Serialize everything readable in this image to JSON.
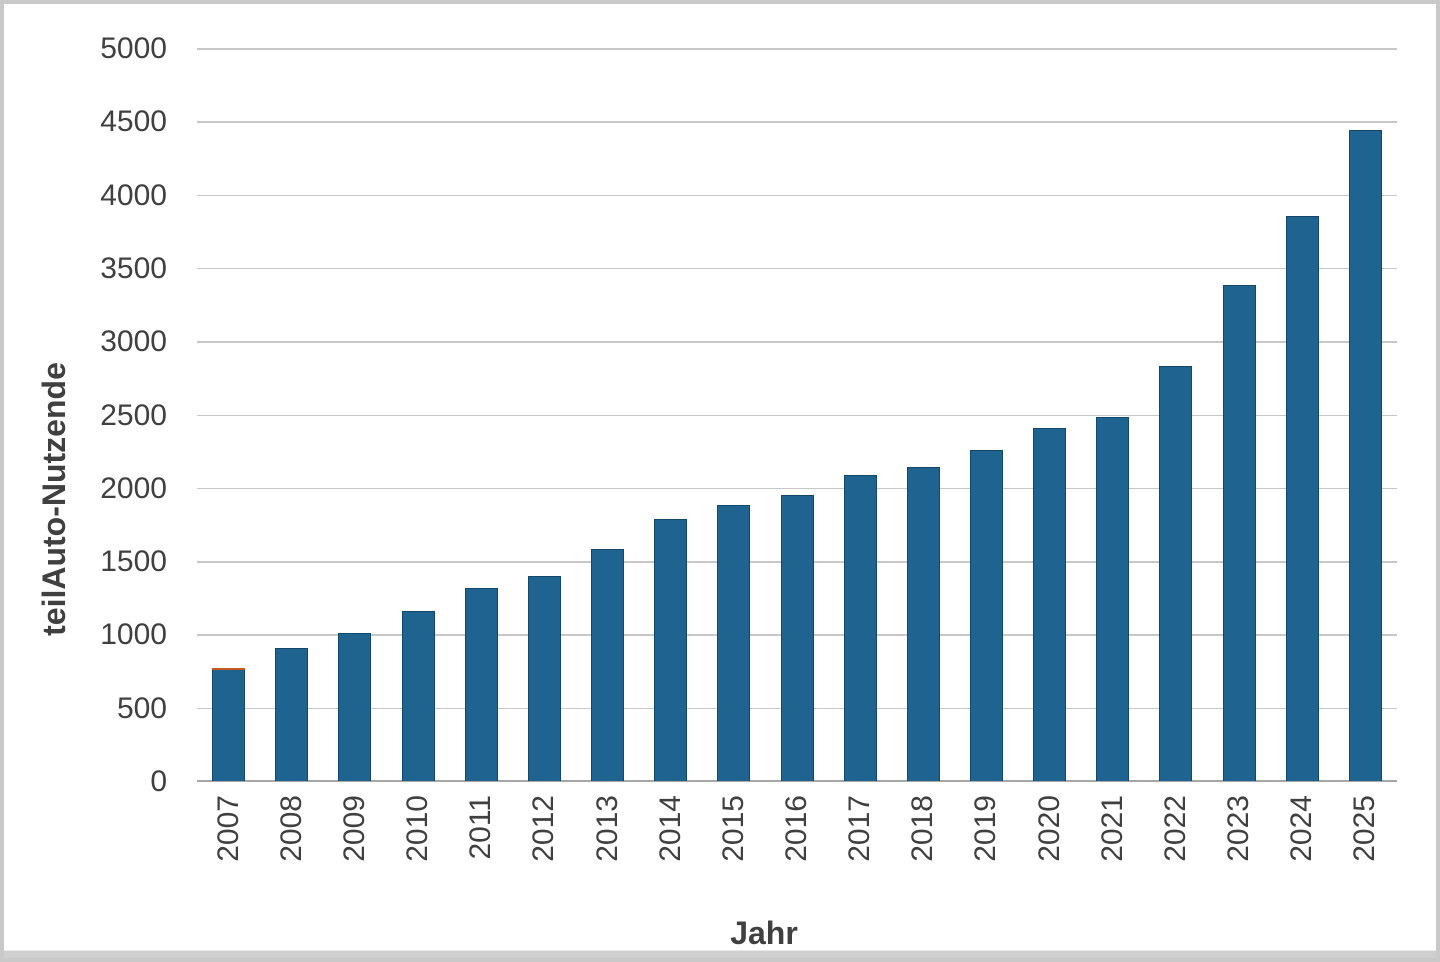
{
  "chart_data": {
    "type": "bar",
    "title": "",
    "xlabel": "Jahr",
    "ylabel": "teilAuto-Nutzende",
    "categories": [
      "2007",
      "2008",
      "2009",
      "2010",
      "2011",
      "2012",
      "2013",
      "2014",
      "2015",
      "2016",
      "2017",
      "2018",
      "2019",
      "2020",
      "2021",
      "2022",
      "2023",
      "2024",
      "2025"
    ],
    "values": [
      770,
      910,
      1010,
      1160,
      1315,
      1400,
      1580,
      1790,
      1880,
      1950,
      2090,
      2140,
      2255,
      2410,
      2480,
      2830,
      3380,
      3855,
      4440
    ],
    "ylim": [
      0,
      5000
    ],
    "ytick_step": 500,
    "yticks": [
      "0",
      "500",
      "1000",
      "1500",
      "2000",
      "2500",
      "3000",
      "3500",
      "4000",
      "4500",
      "5000"
    ],
    "grid": true,
    "legend": "none",
    "annotations": [
      {
        "category": "2007",
        "note": "thin orange cap segment on top of bar",
        "cap_value": 15
      }
    ],
    "colors": {
      "bar_fill": "#1f6391",
      "bar_border": "#14486b",
      "cap_orange": "#bf5b21",
      "gridline": "#c7c7c7",
      "axis_line": "#a6a6a6",
      "tick_text": "#404040",
      "title_text": "#404040",
      "frame_border": "#c9c9c9",
      "bottom_strip": "#cfcfcf"
    }
  }
}
